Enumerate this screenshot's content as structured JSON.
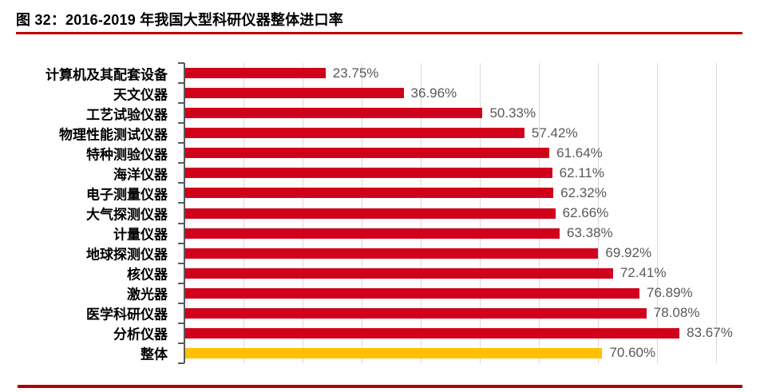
{
  "figure": {
    "title": "图 32：2016-2019 年我国大型科研仪器整体进口率",
    "title_underline_color": "#c00000",
    "bottom_rule_color": "#b00000"
  },
  "chart_data": {
    "type": "bar",
    "orientation": "horizontal",
    "title": "2016-2019 年我国大型科研仪器整体进口率",
    "categories": [
      "计算机及其配套设备",
      "天文仪器",
      "工艺试验仪器",
      "物理性能测试仪器",
      "特种测验仪器",
      "海洋仪器",
      "电子测量仪器",
      "大气探测仪器",
      "计量仪器",
      "地球探测仪器",
      "核仪器",
      "激光器",
      "医学科研仪器",
      "分析仪器",
      "整体"
    ],
    "values": [
      23.75,
      36.96,
      50.33,
      57.42,
      61.64,
      62.11,
      62.32,
      62.66,
      63.38,
      69.92,
      72.41,
      76.89,
      78.08,
      83.67,
      70.6
    ],
    "data_labels": [
      "23.75%",
      "36.96%",
      "50.33%",
      "57.42%",
      "61.64%",
      "62.11%",
      "62.32%",
      "62.66%",
      "63.38%",
      "69.92%",
      "72.41%",
      "76.89%",
      "78.08%",
      "83.67%",
      "70.60%"
    ],
    "highlight_category": "整体",
    "xlabel": "",
    "ylabel": "",
    "axis": {
      "min": 0,
      "max": 90,
      "gridline_step": 10,
      "gridlines_visible": true,
      "tick_labels_visible": false
    },
    "legend": {
      "visible": false
    },
    "colors": {
      "bar_default": "#d0021b",
      "bar_highlight": "#ffc000",
      "gridline": "#d9d9d9",
      "axis_line": "#595959",
      "value_label": "#595959",
      "category_label": "#000000"
    }
  }
}
